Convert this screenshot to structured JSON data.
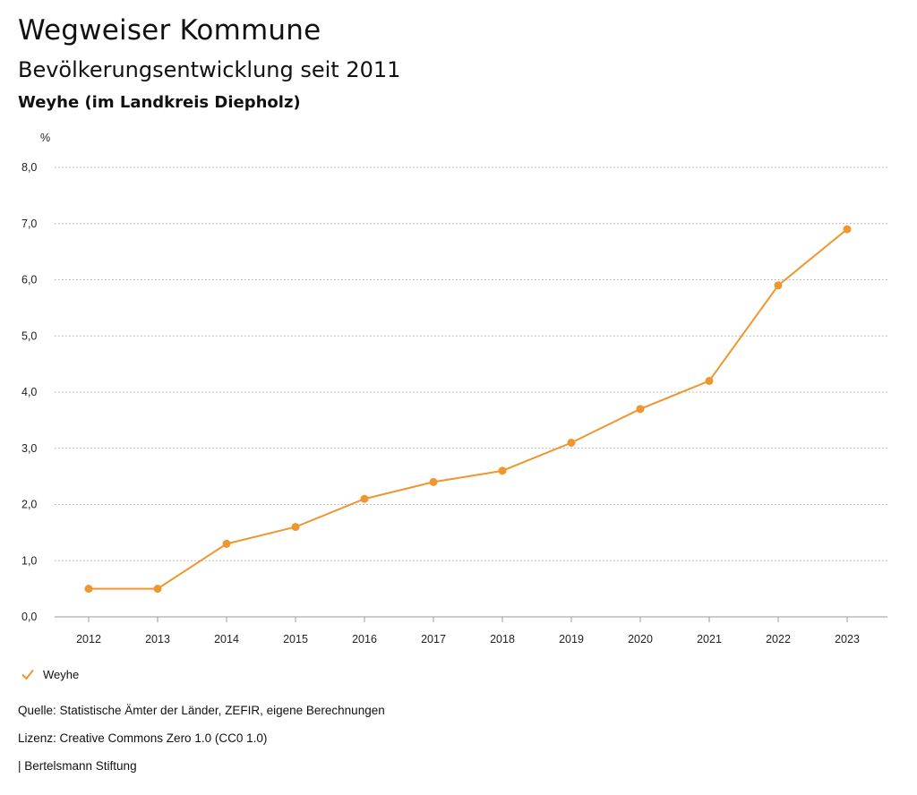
{
  "header": {
    "title": "Wegweiser Kommune",
    "subtitle": "Bevölkerungsentwicklung seit 2011",
    "region": "Weyhe (im Landkreis Diepholz)"
  },
  "chart_data": {
    "type": "line",
    "ylabel": "%",
    "ylim": [
      0,
      8
    ],
    "yticks": [
      "0,0",
      "1,0",
      "2,0",
      "3,0",
      "4,0",
      "5,0",
      "6,0",
      "7,0",
      "8,0"
    ],
    "categories": [
      "2012",
      "2013",
      "2014",
      "2015",
      "2016",
      "2017",
      "2018",
      "2019",
      "2020",
      "2021",
      "2022",
      "2023"
    ],
    "series": [
      {
        "name": "Weyhe",
        "color": "#f0962f",
        "values": [
          0.5,
          0.5,
          1.3,
          1.6,
          2.1,
          2.4,
          2.6,
          3.1,
          3.7,
          4.2,
          5.9,
          6.9
        ]
      }
    ],
    "grid": true,
    "legend": "bottom-left"
  },
  "legend": {
    "label": "Weyhe",
    "icon": "check-icon"
  },
  "footer": {
    "source": "Quelle: Statistische Ämter der Länder, ZEFIR, eigene Berechnungen",
    "license": "Lizenz: Creative Commons Zero 1.0 (CC0 1.0)",
    "publisher": "| Bertelsmann Stiftung"
  }
}
